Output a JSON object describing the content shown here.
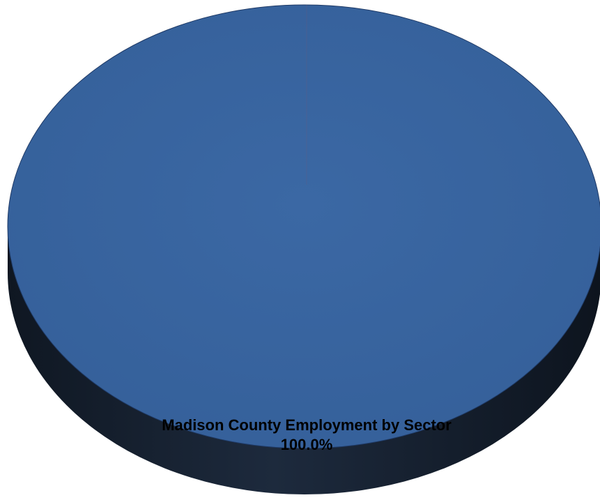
{
  "chart_data": {
    "type": "pie",
    "categories": [
      "Madison County Employment by Sector"
    ],
    "values": [
      100.0
    ],
    "labels": [
      "Madison County Employment by Sector",
      "100.0%"
    ],
    "style": "3d",
    "legend": "none",
    "colors": {
      "slice_top": "#3a65a0",
      "slice_side": "#172233",
      "edge": "#1f3a66"
    }
  }
}
